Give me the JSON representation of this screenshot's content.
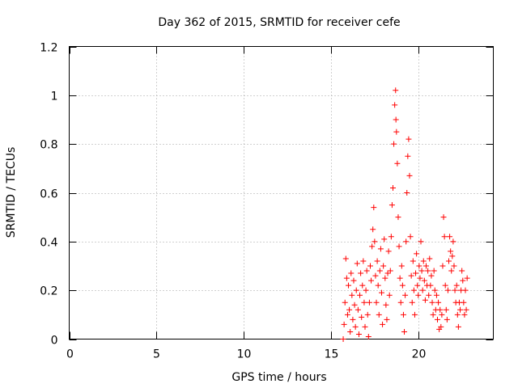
{
  "chart_data": {
    "type": "scatter",
    "title": "Day 362 of 2015, SRMTID for receiver cefe",
    "xlabel": "GPS time / hours",
    "ylabel": "SRMTID / TECUs",
    "xlim": [
      0,
      24.3
    ],
    "ylim": [
      0,
      1.2
    ],
    "xticks": [
      0,
      5,
      10,
      15,
      20
    ],
    "xtick_labels": [
      "0",
      "5",
      "10",
      "15",
      "20"
    ],
    "yticks": [
      0,
      0.2,
      0.4,
      0.6,
      0.8,
      1,
      1.2
    ],
    "ytick_labels": [
      "0",
      "0.2",
      "0.4",
      "0.6",
      "0.8",
      "1",
      "1.2"
    ],
    "grid": true,
    "marker": "plus",
    "series": [
      {
        "name": "SRMTID",
        "color": "#ff0000",
        "points": [
          [
            15.7,
            0.0
          ],
          [
            15.75,
            0.06
          ],
          [
            15.8,
            0.15
          ],
          [
            15.85,
            0.33
          ],
          [
            15.9,
            0.25
          ],
          [
            15.95,
            0.1
          ],
          [
            16.0,
            0.22
          ],
          [
            16.05,
            0.12
          ],
          [
            16.1,
            0.03
          ],
          [
            16.15,
            0.27
          ],
          [
            16.2,
            0.18
          ],
          [
            16.25,
            0.08
          ],
          [
            16.3,
            0.24
          ],
          [
            16.35,
            0.14
          ],
          [
            16.4,
            0.05
          ],
          [
            16.45,
            0.2
          ],
          [
            16.5,
            0.31
          ],
          [
            16.55,
            0.12
          ],
          [
            16.6,
            0.02
          ],
          [
            16.65,
            0.18
          ],
          [
            16.7,
            0.27
          ],
          [
            16.75,
            0.09
          ],
          [
            16.8,
            0.22
          ],
          [
            16.85,
            0.32
          ],
          [
            16.9,
            0.15
          ],
          [
            16.95,
            0.05
          ],
          [
            17.0,
            0.2
          ],
          [
            17.05,
            0.28
          ],
          [
            17.1,
            0.1
          ],
          [
            17.15,
            0.01
          ],
          [
            17.2,
            0.15
          ],
          [
            17.25,
            0.3
          ],
          [
            17.3,
            0.24
          ],
          [
            17.35,
            0.38
          ],
          [
            17.4,
            0.45
          ],
          [
            17.45,
            0.54
          ],
          [
            17.5,
            0.4
          ],
          [
            17.55,
            0.26
          ],
          [
            17.6,
            0.15
          ],
          [
            17.65,
            0.32
          ],
          [
            17.7,
            0.22
          ],
          [
            17.75,
            0.1
          ],
          [
            17.8,
            0.28
          ],
          [
            17.85,
            0.37
          ],
          [
            17.9,
            0.19
          ],
          [
            17.95,
            0.06
          ],
          [
            18.0,
            0.3
          ],
          [
            18.05,
            0.41
          ],
          [
            18.1,
            0.25
          ],
          [
            18.15,
            0.14
          ],
          [
            18.2,
            0.08
          ],
          [
            18.25,
            0.27
          ],
          [
            18.3,
            0.36
          ],
          [
            18.35,
            0.18
          ],
          [
            18.4,
            0.28
          ],
          [
            18.45,
            0.42
          ],
          [
            18.5,
            0.55
          ],
          [
            18.55,
            0.62
          ],
          [
            18.6,
            0.8
          ],
          [
            18.65,
            0.96
          ],
          [
            18.7,
            1.02
          ],
          [
            18.72,
            0.9
          ],
          [
            18.75,
            0.85
          ],
          [
            18.8,
            0.72
          ],
          [
            18.85,
            0.5
          ],
          [
            18.9,
            0.38
          ],
          [
            18.95,
            0.25
          ],
          [
            19.0,
            0.15
          ],
          [
            19.05,
            0.3
          ],
          [
            19.1,
            0.22
          ],
          [
            19.15,
            0.1
          ],
          [
            19.2,
            0.03
          ],
          [
            19.25,
            0.18
          ],
          [
            19.3,
            0.4
          ],
          [
            19.35,
            0.6
          ],
          [
            19.4,
            0.75
          ],
          [
            19.45,
            0.82
          ],
          [
            19.5,
            0.67
          ],
          [
            19.55,
            0.42
          ],
          [
            19.6,
            0.26
          ],
          [
            19.65,
            0.15
          ],
          [
            19.7,
            0.32
          ],
          [
            19.75,
            0.2
          ],
          [
            19.8,
            0.1
          ],
          [
            19.85,
            0.27
          ],
          [
            19.9,
            0.35
          ],
          [
            19.95,
            0.22
          ],
          [
            20.0,
            0.18
          ],
          [
            20.05,
            0.3
          ],
          [
            20.1,
            0.25
          ],
          [
            20.15,
            0.4
          ],
          [
            20.2,
            0.28
          ],
          [
            20.25,
            0.2
          ],
          [
            20.3,
            0.32
          ],
          [
            20.35,
            0.24
          ],
          [
            20.4,
            0.16
          ],
          [
            20.45,
            0.3
          ],
          [
            20.5,
            0.22
          ],
          [
            20.55,
            0.28
          ],
          [
            20.6,
            0.18
          ],
          [
            20.65,
            0.33
          ],
          [
            20.7,
            0.22
          ],
          [
            20.75,
            0.26
          ],
          [
            20.8,
            0.15
          ],
          [
            20.85,
            0.1
          ],
          [
            20.9,
            0.28
          ],
          [
            20.95,
            0.2
          ],
          [
            21.0,
            0.12
          ],
          [
            21.05,
            0.18
          ],
          [
            21.1,
            0.08
          ],
          [
            21.15,
            0.15
          ],
          [
            21.2,
            0.04
          ],
          [
            21.25,
            0.12
          ],
          [
            21.3,
            0.05
          ],
          [
            21.35,
            0.1
          ],
          [
            21.4,
            0.3
          ],
          [
            21.45,
            0.5
          ],
          [
            21.5,
            0.42
          ],
          [
            21.55,
            0.22
          ],
          [
            21.6,
            0.12
          ],
          [
            21.65,
            0.08
          ],
          [
            21.7,
            0.2
          ],
          [
            21.75,
            0.32
          ],
          [
            21.8,
            0.42
          ],
          [
            21.85,
            0.36
          ],
          [
            21.9,
            0.28
          ],
          [
            21.95,
            0.34
          ],
          [
            22.0,
            0.4
          ],
          [
            22.05,
            0.3
          ],
          [
            22.1,
            0.2
          ],
          [
            22.15,
            0.15
          ],
          [
            22.2,
            0.22
          ],
          [
            22.25,
            0.1
          ],
          [
            22.3,
            0.05
          ],
          [
            22.35,
            0.15
          ],
          [
            22.4,
            0.12
          ],
          [
            22.45,
            0.2
          ],
          [
            22.5,
            0.28
          ],
          [
            22.55,
            0.24
          ],
          [
            22.6,
            0.15
          ],
          [
            22.65,
            0.1
          ],
          [
            22.7,
            0.2
          ],
          [
            22.75,
            0.12
          ],
          [
            22.8,
            0.25
          ]
        ]
      }
    ]
  }
}
